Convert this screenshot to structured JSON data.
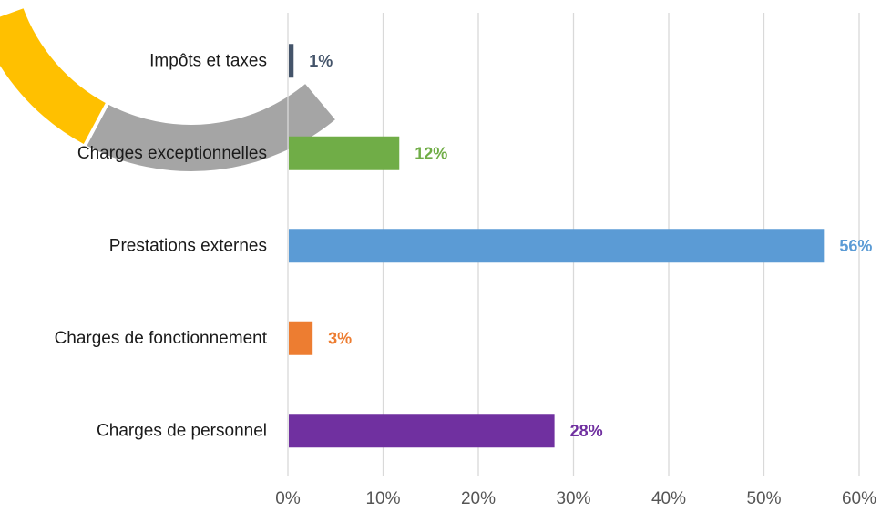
{
  "chart_data": {
    "type": "bar",
    "orientation": "horizontal",
    "categories": [
      "Impôts et taxes",
      "Charges exceptionnelles",
      "Prestations externes",
      "Charges de fonctionnement",
      "Charges de personnel"
    ],
    "values": [
      0.6,
      11.7,
      56.3,
      2.6,
      28.0
    ],
    "data_labels": [
      "1%",
      "12%",
      "56%",
      "3%",
      "28%"
    ],
    "bar_colors": [
      "#44546a",
      "#70ad47",
      "#5b9bd5",
      "#ed7d31",
      "#7030a0"
    ],
    "xlim": [
      0,
      60
    ],
    "x_ticks": [
      0,
      10,
      20,
      30,
      40,
      50,
      60
    ],
    "x_tick_labels": [
      "0%",
      "10%",
      "20%",
      "30%",
      "40%",
      "50%",
      "60%"
    ],
    "grid": true,
    "gridline_color": "#d9d9d9",
    "title": "",
    "xlabel": "",
    "ylabel": ""
  },
  "decoration": {
    "partial_donut_colors": [
      "#a5a5a5",
      "#ffc000"
    ]
  }
}
